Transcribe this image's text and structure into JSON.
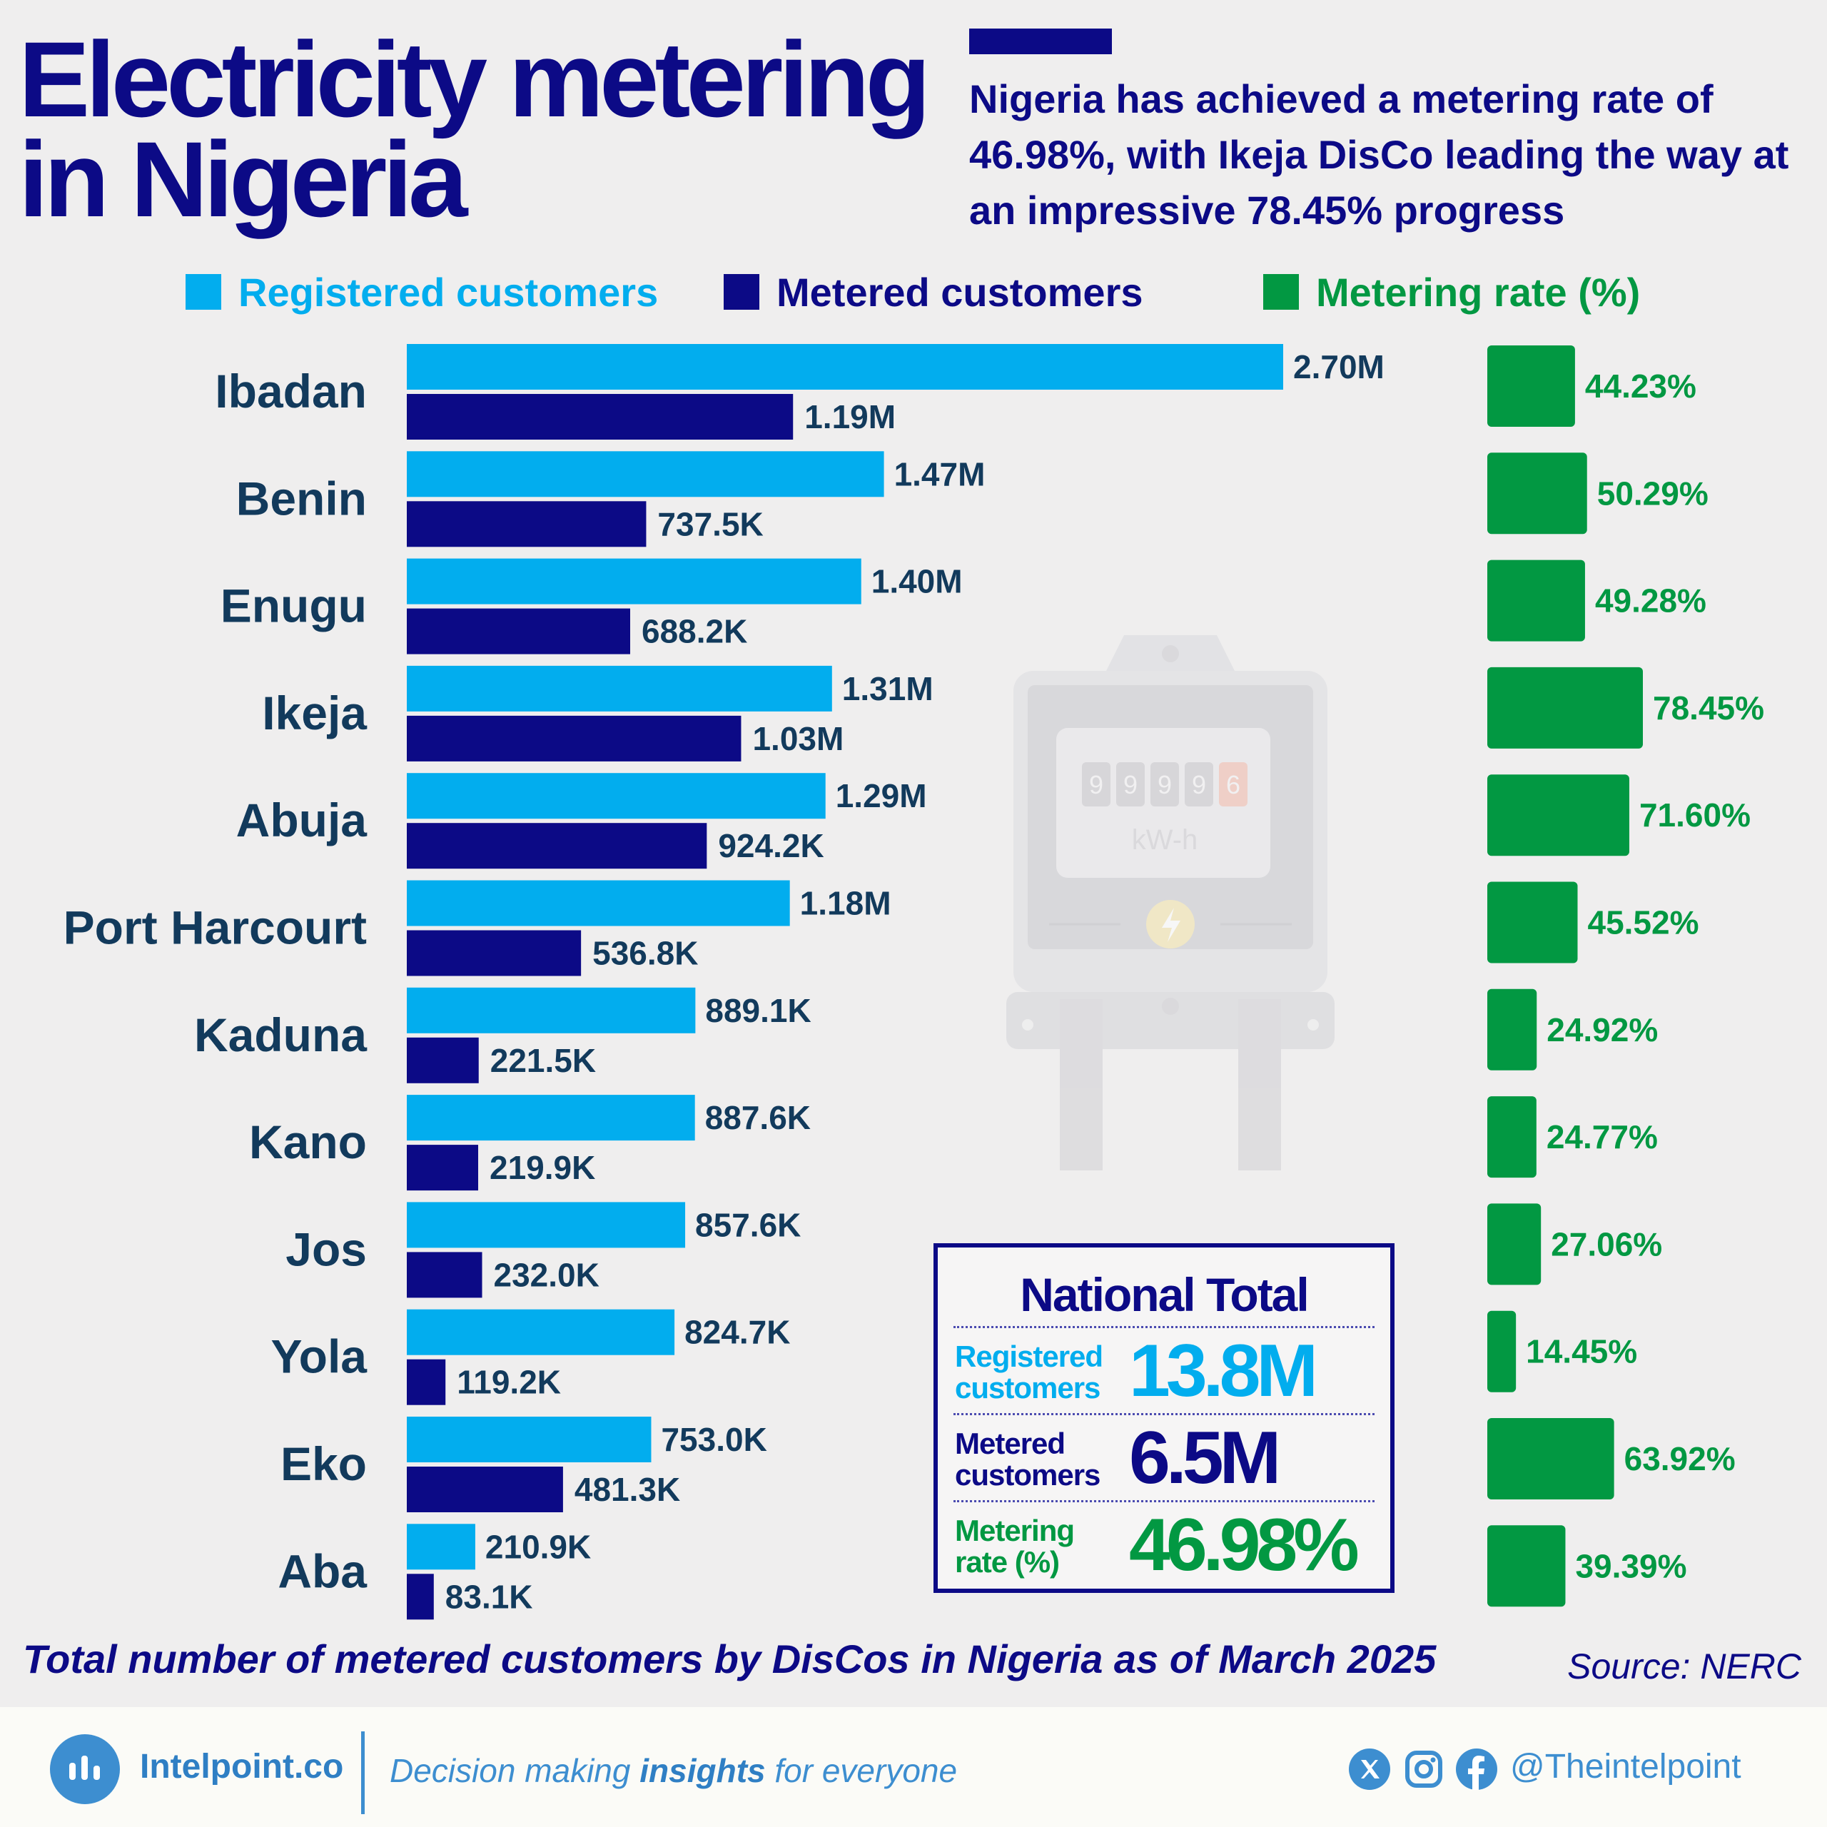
{
  "header": {
    "title_line1": "Electricity metering",
    "title_line2": "in Nigeria",
    "subtitle": "Nigeria has achieved a metering rate of 46.98%, with Ikeja DisCo leading the way at an impressive 78.45% progress"
  },
  "legend": {
    "registered": "Registered customers",
    "metered": "Metered customers",
    "rate": "Metering rate (%)"
  },
  "colors": {
    "registered": "#02adee",
    "metered": "#0c0a86",
    "rate": "#029842",
    "disco_label": "#123a5c",
    "value_label": "#123a5c"
  },
  "chart_data": {
    "type": "bar",
    "orientation": "horizontal",
    "categories": [
      "Ibadan",
      "Benin",
      "Enugu",
      "Ikeja",
      "Abuja",
      "Port Harcourt",
      "Kaduna",
      "Kano",
      "Jos",
      "Yola",
      "Eko",
      "Aba"
    ],
    "series": [
      {
        "name": "Registered customers",
        "values": [
          2700000,
          1470000,
          1400000,
          1310000,
          1290000,
          1180000,
          889100,
          887600,
          857600,
          824700,
          753000,
          210900
        ],
        "labels": [
          "2.70M",
          "1.47M",
          "1.40M",
          "1.31M",
          "1.29M",
          "1.18M",
          "889.1K",
          "887.6K",
          "857.6K",
          "824.7K",
          "753.0K",
          "210.9K"
        ]
      },
      {
        "name": "Metered customers",
        "values": [
          1190000,
          737500,
          688200,
          1030000,
          924200,
          536800,
          221500,
          219900,
          232000,
          119200,
          481300,
          83100
        ],
        "labels": [
          "1.19M",
          "737.5K",
          "688.2K",
          "1.03M",
          "924.2K",
          "536.8K",
          "221.5K",
          "219.9K",
          "232.0K",
          "119.2K",
          "481.3K",
          "83.1K"
        ]
      },
      {
        "name": "Metering rate (%)",
        "values": [
          44.23,
          50.29,
          49.28,
          78.45,
          71.6,
          45.52,
          24.92,
          24.77,
          27.06,
          14.45,
          63.92,
          39.39
        ],
        "labels": [
          "44.23%",
          "50.29%",
          "49.28%",
          "78.45%",
          "71.60%",
          "45.52%",
          "24.92%",
          "24.77%",
          "27.06%",
          "14.45%",
          "63.92%",
          "39.39%"
        ]
      }
    ],
    "xlim_customers": [
      0,
      2700000
    ],
    "xlim_rate": [
      0,
      78.45
    ],
    "grid": false,
    "legend_position": "top"
  },
  "meter": {
    "digits": [
      "9",
      "9",
      "9",
      "9",
      "6"
    ],
    "unit": "kW-h"
  },
  "national_total": {
    "title": "National Total",
    "registered_label": "Registered customers",
    "registered_value": "13.8M",
    "metered_label": "Metered customers",
    "metered_value": "6.5M",
    "rate_label": "Metering rate (%)",
    "rate_value": "46.98%"
  },
  "caption": "Total number of metered customers by DisCos in Nigeria as of March 2025",
  "source": "Source: NERC",
  "footer": {
    "brand": "Intelpoint.co",
    "tagline_pre": "Decision making ",
    "tagline_bold": "insights",
    "tagline_post": " for everyone",
    "handle": "@Theintelpoint",
    "social_icons": [
      "x-icon",
      "instagram-icon",
      "facebook-icon"
    ]
  }
}
